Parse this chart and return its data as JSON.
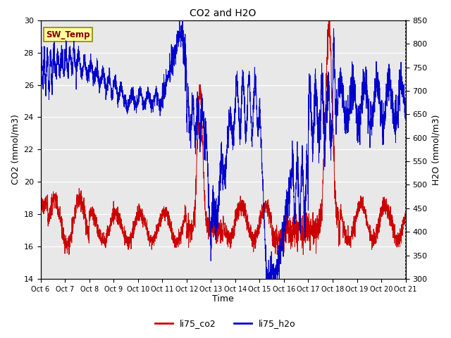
{
  "title": "CO2 and H2O",
  "xlabel": "Time",
  "ylabel_left": "CO2 (mmol/m3)",
  "ylabel_right": "H2O (mmol/m3)",
  "xlim": [
    0,
    15
  ],
  "ylim_left": [
    14,
    30
  ],
  "ylim_right": [
    300,
    850
  ],
  "xtick_labels": [
    "Oct 6",
    "Oct 7",
    "Oct 8",
    "Oct 9",
    "Oct 10",
    "Oct 11",
    "Oct 12",
    "Oct 13",
    "Oct 14",
    "Oct 15",
    "Oct 16",
    "Oct 17",
    "Oct 18",
    "Oct 19",
    "Oct 20",
    "Oct 21"
  ],
  "yticks_left": [
    14,
    16,
    18,
    20,
    22,
    24,
    26,
    28,
    30
  ],
  "yticks_right": [
    300,
    350,
    400,
    450,
    500,
    550,
    600,
    650,
    700,
    750,
    800,
    850
  ],
  "co2_color": "#cc0000",
  "h2o_color": "#0000cc",
  "bg_color": "#e8e8e8",
  "box_label": "SW_Temp",
  "box_facecolor": "#ffffa0",
  "box_edgecolor": "#888800",
  "box_textcolor": "#880000",
  "legend_co2": "li75_co2",
  "legend_h2o": "li75_h2o"
}
